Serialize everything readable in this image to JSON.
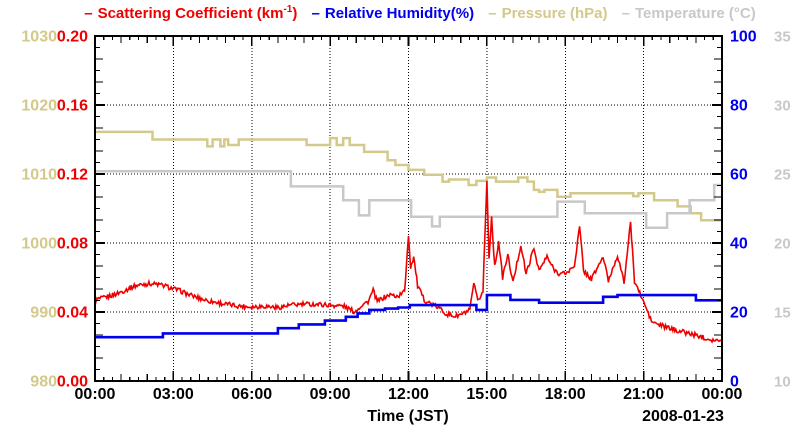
{
  "chart_data": {
    "type": "line",
    "title": "",
    "legend": {
      "items": [
        {
          "dash": "–",
          "prefix": "Scattering Coefficient (km",
          "sup": "-1",
          "suffix": ")",
          "color": "#ee0000"
        },
        {
          "dash": "–",
          "label": "Relative Humidity(%)",
          "color": "#0000ee"
        },
        {
          "dash": "–",
          "label": "Pressure (hPa)",
          "color": "#d2c98a"
        },
        {
          "dash": "–",
          "label": "Temperature (°C)",
          "color": "#c8c8c8"
        }
      ]
    },
    "x": {
      "label": "Time (JST)",
      "date_annotation": "2008-01-23",
      "range_hours": [
        0,
        24
      ],
      "tick_hours": [
        0,
        3,
        6,
        9,
        12,
        15,
        18,
        21,
        24
      ],
      "tick_labels": [
        "00:00",
        "03:00",
        "06:00",
        "09:00",
        "12:00",
        "15:00",
        "18:00",
        "21:00",
        "00:00"
      ],
      "grid": true
    },
    "y_axes": [
      {
        "id": "pressure",
        "name": "Pressure (hPa)",
        "side": "outer-left",
        "color": "#d2c98a",
        "range": [
          980,
          1030
        ],
        "tick_labels": [
          "1030",
          "1020",
          "1010",
          "1000",
          "990",
          "980"
        ]
      },
      {
        "id": "scattering",
        "name": "Scattering Coefficient (km-1)",
        "side": "inner-left",
        "color": "#ee0000",
        "range": [
          0,
          0.2
        ],
        "tick_labels": [
          "0.20",
          "0.16",
          "0.12",
          "0.08",
          "0.04",
          "0.00"
        ]
      },
      {
        "id": "humidity",
        "name": "Relative Humidity(%)",
        "side": "inner-right",
        "color": "#0000ee",
        "range": [
          0,
          100
        ],
        "tick_labels": [
          "100",
          "80",
          "60",
          "40",
          "20",
          "0"
        ]
      },
      {
        "id": "temperature",
        "name": "Temperature (C)",
        "side": "outer-right",
        "color": "#c8c8c8",
        "range": [
          10,
          35
        ],
        "tick_labels": [
          "35",
          "30",
          "25",
          "20",
          "15",
          "10"
        ]
      }
    ],
    "series": [
      {
        "name": "Pressure (hPa)",
        "axis": "pressure",
        "color": "#d2c98a",
        "style": "step",
        "width": 2.5,
        "points": [
          [
            0,
            1016.1
          ],
          [
            2.2,
            1015.0
          ],
          [
            4.3,
            1014.0
          ],
          [
            4.5,
            1015.0
          ],
          [
            4.8,
            1014.0
          ],
          [
            4.95,
            1015.0
          ],
          [
            5.1,
            1014.2
          ],
          [
            5.5,
            1015.0
          ],
          [
            8.1,
            1014.2
          ],
          [
            9.0,
            1015.2
          ],
          [
            9.25,
            1014.2
          ],
          [
            9.5,
            1015.2
          ],
          [
            9.75,
            1014.2
          ],
          [
            10.3,
            1013.2
          ],
          [
            11.2,
            1012.0
          ],
          [
            11.5,
            1011.3
          ],
          [
            12.0,
            1010.6
          ],
          [
            12.6,
            1009.9
          ],
          [
            13.3,
            1008.9
          ],
          [
            13.55,
            1009.2
          ],
          [
            14.3,
            1008.4
          ],
          [
            14.6,
            1009.0
          ],
          [
            15.0,
            1009.5
          ],
          [
            15.35,
            1008.9
          ],
          [
            16.2,
            1009.5
          ],
          [
            16.55,
            1008.9
          ],
          [
            16.8,
            1007.7
          ],
          [
            17.0,
            1007.4
          ],
          [
            17.2,
            1007.7
          ],
          [
            17.7,
            1006.7
          ],
          [
            18.2,
            1007.2
          ],
          [
            20.6,
            1006.8
          ],
          [
            20.8,
            1007.2
          ],
          [
            21.4,
            1006.2
          ],
          [
            22.3,
            1005.3
          ],
          [
            22.8,
            1004.3
          ],
          [
            23.2,
            1003.3
          ],
          [
            24,
            1003.3
          ]
        ]
      },
      {
        "name": "Temperature (C)",
        "axis": "temperature",
        "color": "#c8c8c8",
        "style": "step",
        "width": 2.5,
        "points": [
          [
            0,
            25.2
          ],
          [
            7.5,
            24.1
          ],
          [
            9.5,
            23.1
          ],
          [
            10.1,
            22.0
          ],
          [
            10.5,
            23.1
          ],
          [
            12.1,
            21.9
          ],
          [
            12.9,
            21.2
          ],
          [
            13.2,
            21.9
          ],
          [
            17.7,
            23.0
          ],
          [
            18.75,
            22.15
          ],
          [
            21.1,
            21.1
          ],
          [
            21.9,
            22.15
          ],
          [
            22.76,
            23.1
          ],
          [
            23.7,
            24.2
          ],
          [
            24,
            24.2
          ]
        ]
      },
      {
        "name": "Scattering Coefficient (km-1)",
        "axis": "scattering",
        "color": "#ee0000",
        "style": "noisy-line",
        "width": 1.6,
        "noise_amplitude": 0.0014,
        "points": [
          [
            0,
            0.047
          ],
          [
            0.3,
            0.048
          ],
          [
            0.6,
            0.0495
          ],
          [
            0.9,
            0.051
          ],
          [
            1.2,
            0.053
          ],
          [
            1.5,
            0.055
          ],
          [
            1.8,
            0.056
          ],
          [
            2.1,
            0.0565
          ],
          [
            2.4,
            0.056
          ],
          [
            2.7,
            0.055
          ],
          [
            3.0,
            0.0535
          ],
          [
            3.3,
            0.052
          ],
          [
            3.6,
            0.05
          ],
          [
            3.9,
            0.0485
          ],
          [
            4.2,
            0.047
          ],
          [
            4.5,
            0.046
          ],
          [
            5.0,
            0.0445
          ],
          [
            5.5,
            0.0435
          ],
          [
            6.0,
            0.043
          ],
          [
            6.5,
            0.0435
          ],
          [
            7.0,
            0.0425
          ],
          [
            7.5,
            0.044
          ],
          [
            8.0,
            0.0445
          ],
          [
            8.5,
            0.0445
          ],
          [
            9.0,
            0.044
          ],
          [
            9.5,
            0.0435
          ],
          [
            9.95,
            0.04
          ],
          [
            10.2,
            0.044
          ],
          [
            10.45,
            0.046
          ],
          [
            10.65,
            0.0525
          ],
          [
            10.8,
            0.046
          ],
          [
            11.0,
            0.048
          ],
          [
            11.3,
            0.05
          ],
          [
            11.6,
            0.049
          ],
          [
            11.85,
            0.052
          ],
          [
            12.0,
            0.085
          ],
          [
            12.08,
            0.066
          ],
          [
            12.2,
            0.072
          ],
          [
            12.35,
            0.055
          ],
          [
            12.6,
            0.047
          ],
          [
            12.9,
            0.0445
          ],
          [
            13.2,
            0.042
          ],
          [
            13.5,
            0.0385
          ],
          [
            13.8,
            0.0375
          ],
          [
            14.1,
            0.039
          ],
          [
            14.35,
            0.041
          ],
          [
            14.5,
            0.0565
          ],
          [
            14.65,
            0.046
          ],
          [
            14.85,
            0.052
          ],
          [
            15.0,
            0.116
          ],
          [
            15.08,
            0.072
          ],
          [
            15.18,
            0.095
          ],
          [
            15.3,
            0.066
          ],
          [
            15.45,
            0.081
          ],
          [
            15.6,
            0.06
          ],
          [
            15.8,
            0.073
          ],
          [
            16.0,
            0.057
          ],
          [
            16.3,
            0.079
          ],
          [
            16.5,
            0.062
          ],
          [
            16.8,
            0.077
          ],
          [
            17.0,
            0.064
          ],
          [
            17.3,
            0.072
          ],
          [
            17.55,
            0.065
          ],
          [
            17.8,
            0.062
          ],
          [
            18.1,
            0.063
          ],
          [
            18.35,
            0.067
          ],
          [
            18.55,
            0.0895
          ],
          [
            18.7,
            0.064
          ],
          [
            19.0,
            0.059
          ],
          [
            19.45,
            0.072
          ],
          [
            19.65,
            0.058
          ],
          [
            20.0,
            0.073
          ],
          [
            20.25,
            0.057
          ],
          [
            20.5,
            0.092
          ],
          [
            20.65,
            0.058
          ],
          [
            20.85,
            0.051
          ],
          [
            21.05,
            0.044
          ],
          [
            21.3,
            0.0345
          ],
          [
            21.6,
            0.0325
          ],
          [
            22.0,
            0.0305
          ],
          [
            22.5,
            0.0285
          ],
          [
            23.0,
            0.0265
          ],
          [
            23.5,
            0.0245
          ],
          [
            24,
            0.0225
          ]
        ]
      },
      {
        "name": "Relative Humidity(%)",
        "axis": "humidity",
        "color": "#0000ee",
        "style": "step",
        "width": 2.6,
        "points": [
          [
            0,
            12.7
          ],
          [
            2.6,
            13.8
          ],
          [
            7.0,
            15.3
          ],
          [
            7.8,
            16.4
          ],
          [
            8.8,
            17.5
          ],
          [
            9.6,
            18.6
          ],
          [
            10.05,
            19.6
          ],
          [
            10.5,
            20.6
          ],
          [
            11.1,
            21.0
          ],
          [
            11.6,
            21.3
          ],
          [
            12.05,
            22.0
          ],
          [
            14.6,
            20.6
          ],
          [
            15.0,
            24.9
          ],
          [
            15.9,
            23.5
          ],
          [
            17.0,
            22.7
          ],
          [
            19.45,
            24.4
          ],
          [
            20.0,
            24.9
          ],
          [
            23.0,
            23.4
          ],
          [
            24,
            23.4
          ]
        ]
      }
    ],
    "grid_color": "#000000",
    "background": "#ffffff"
  }
}
